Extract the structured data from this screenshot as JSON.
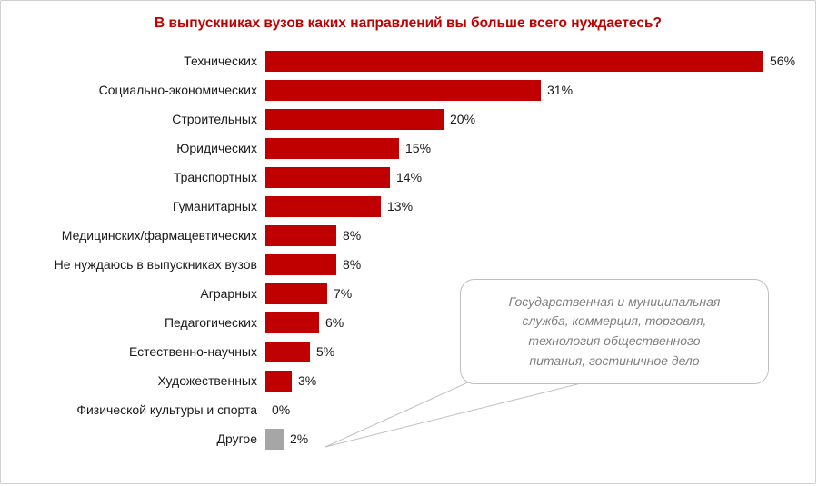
{
  "chart_data": {
    "type": "bar",
    "orientation": "horizontal",
    "title": "В выпускниках вузов каких направлений вы больше всего нуждаетесь?",
    "title_color": "#C00000",
    "categories": [
      "Технических",
      "Социально-экономических",
      "Строительных",
      "Юридических",
      "Транспортных",
      "Гуманитарных",
      "Медицинских/фармацевтических",
      "Не нуждаюсь в выпускниках вузов",
      "Аграрных",
      "Педагогических",
      "Естественно-научных",
      "Художественных",
      "Физической культуры и спорта",
      "Другое"
    ],
    "values": [
      56,
      31,
      20,
      15,
      14,
      13,
      8,
      8,
      7,
      6,
      5,
      3,
      0,
      2
    ],
    "value_labels": [
      "56%",
      "31%",
      "20%",
      "15%",
      "14%",
      "13%",
      "8%",
      "8%",
      "7%",
      "6%",
      "5%",
      "3%",
      "0%",
      "2%"
    ],
    "colors": [
      "#C00000",
      "#C00000",
      "#C00000",
      "#C00000",
      "#C00000",
      "#C00000",
      "#C00000",
      "#C00000",
      "#C00000",
      "#C00000",
      "#C00000",
      "#C00000",
      "#C00000",
      "#A6A6A6"
    ],
    "bar_color": "#C00000",
    "other_bar_color": "#A6A6A6",
    "xlim": [
      0,
      60
    ],
    "grid": false,
    "legend": "none",
    "annotation": {
      "text": "Государственная и муниципальная\nслужба, коммерция, торговля,\nтехнология общественного\nпитания, гостиничное дело",
      "points_to": "Другое"
    }
  }
}
